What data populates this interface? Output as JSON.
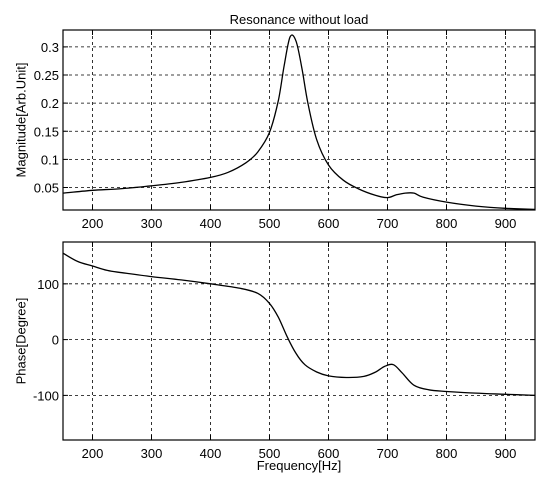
{
  "chart_data": [
    {
      "type": "line",
      "title": "Resonance without load",
      "xlabel": "",
      "ylabel": "Magnitude[Arb.Unit]",
      "xlim": [
        150,
        950
      ],
      "ylim": [
        0.01,
        0.33
      ],
      "xticks": [
        200,
        300,
        400,
        500,
        600,
        700,
        800,
        900
      ],
      "yticks": [
        0.05,
        0.1,
        0.15,
        0.2,
        0.25,
        0.3
      ],
      "ytick_labels": [
        "0.05",
        "0.1",
        "0.15",
        "0.2",
        "0.25",
        "0.3"
      ],
      "grid": true,
      "series": [
        {
          "x": [
            150,
            200,
            250,
            300,
            350,
            400,
            430,
            460,
            480,
            500,
            515,
            525,
            535,
            545,
            555,
            565,
            580,
            600,
            625,
            650,
            680,
            700,
            715,
            730,
            745,
            760,
            800,
            850,
            900,
            950
          ],
          "y": [
            0.04,
            0.045,
            0.048,
            0.053,
            0.059,
            0.068,
            0.077,
            0.094,
            0.113,
            0.148,
            0.205,
            0.268,
            0.318,
            0.31,
            0.262,
            0.2,
            0.135,
            0.09,
            0.063,
            0.048,
            0.036,
            0.032,
            0.037,
            0.04,
            0.04,
            0.033,
            0.024,
            0.017,
            0.013,
            0.011
          ]
        }
      ]
    },
    {
      "type": "line",
      "title": "",
      "xlabel": "Frequency[Hz]",
      "ylabel": "Phase[Degree]",
      "xlim": [
        150,
        950
      ],
      "ylim": [
        -180,
        175
      ],
      "xticks": [
        200,
        300,
        400,
        500,
        600,
        700,
        800,
        900
      ],
      "yticks": [
        -100,
        0,
        100
      ],
      "ytick_labels": [
        "-100",
        "0",
        "100"
      ],
      "grid": true,
      "series": [
        {
          "x": [
            150,
            175,
            200,
            225,
            250,
            300,
            350,
            400,
            450,
            480,
            500,
            515,
            530,
            545,
            560,
            580,
            600,
            630,
            660,
            680,
            695,
            710,
            725,
            745,
            770,
            800,
            850,
            900,
            950
          ],
          "y": [
            155,
            140,
            132,
            124,
            120,
            113,
            107,
            100,
            92,
            83,
            65,
            40,
            5,
            -25,
            -45,
            -58,
            -65,
            -68,
            -66,
            -58,
            -48,
            -45,
            -60,
            -82,
            -90,
            -93,
            -96,
            -98,
            -100
          ]
        }
      ]
    }
  ]
}
